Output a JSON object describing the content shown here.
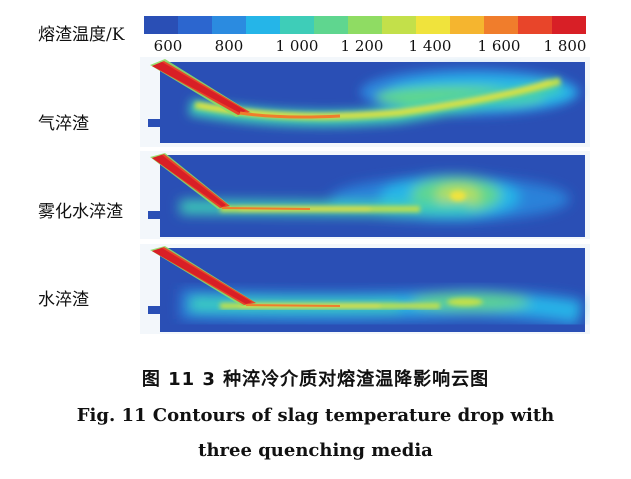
{
  "legend": {
    "title": "熔渣温度/K",
    "ticks": [
      "600",
      "800",
      "1 000",
      "1 200",
      "1 400",
      "1 600",
      "1 800"
    ],
    "colors": [
      "#2a4fb5",
      "#2c66cf",
      "#2b8be0",
      "#25b5e8",
      "#3ecdb8",
      "#5fd68f",
      "#8fdc63",
      "#c3e04a",
      "#f0e33c",
      "#f5b52f",
      "#f07d2c",
      "#e8452a",
      "#d81f26"
    ]
  },
  "panels": [
    {
      "label": "气淬渣"
    },
    {
      "label": "雾化水淬渣"
    },
    {
      "label": "水淬渣"
    }
  ],
  "caption": {
    "cn": "图 11   3 种淬冷介质对熔渣温降影响云图",
    "en_line1": "Fig. 11    Contours of slag temperature drop with",
    "en_line2": "three quenching media"
  }
}
